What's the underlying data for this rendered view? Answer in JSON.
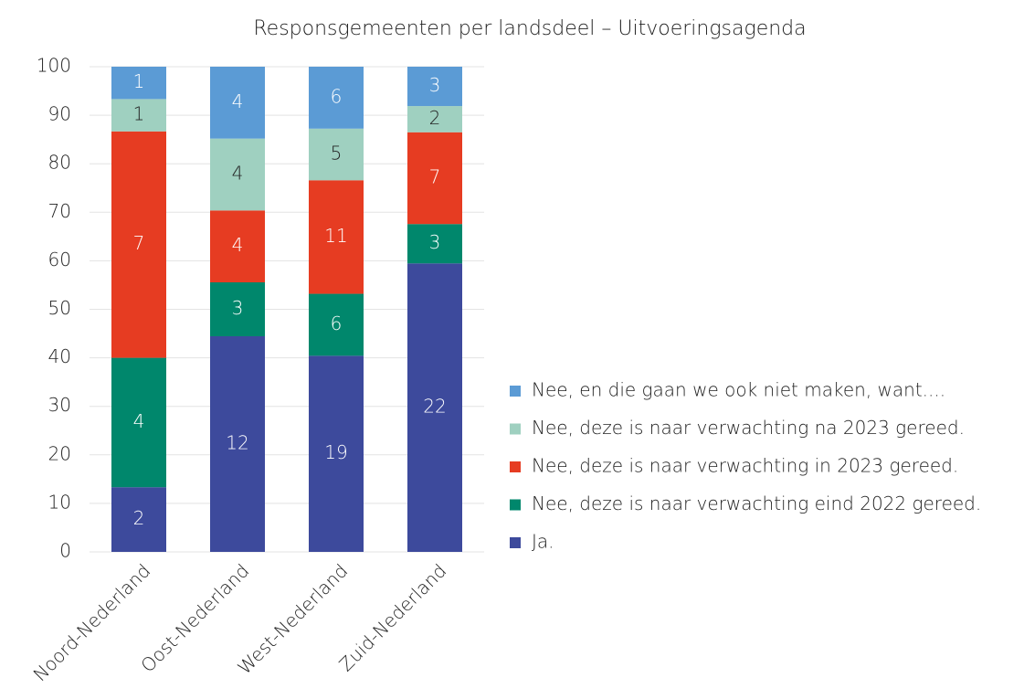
{
  "chart_data": {
    "type": "stacked_bar_percent",
    "title": "Responsgemeenten per landsdeel – Uitvoeringsagenda",
    "categories": [
      "Noord-Nederland",
      "Oost-Nederland",
      "West-Nederland",
      "Zuid-Nederland"
    ],
    "series": [
      {
        "name": "Ja.",
        "color": "#3d4a9c",
        "values": [
          2,
          12,
          19,
          22
        ]
      },
      {
        "name": "Nee, deze is naar verwachting eind 2022 gereed.",
        "color": "#00876c",
        "values": [
          4,
          3,
          6,
          3
        ]
      },
      {
        "name": "Nee, deze is naar verwachting in 2023 gereed.",
        "color": "#e63c22",
        "values": [
          7,
          4,
          11,
          7
        ]
      },
      {
        "name": "Nee, deze is naar verwachting na 2023 gereed.",
        "color": "#9fd0c0",
        "values": [
          1,
          4,
          5,
          2
        ]
      },
      {
        "name": "Nee, en die gaan we ook niet maken, want....",
        "color": "#5b9bd5",
        "values": [
          1,
          4,
          6,
          3
        ]
      }
    ],
    "ylim": [
      0,
      100
    ],
    "yticks": [
      0,
      10,
      20,
      30,
      40,
      50,
      60,
      70,
      80,
      90,
      100
    ],
    "grid": true,
    "legend": "right"
  }
}
